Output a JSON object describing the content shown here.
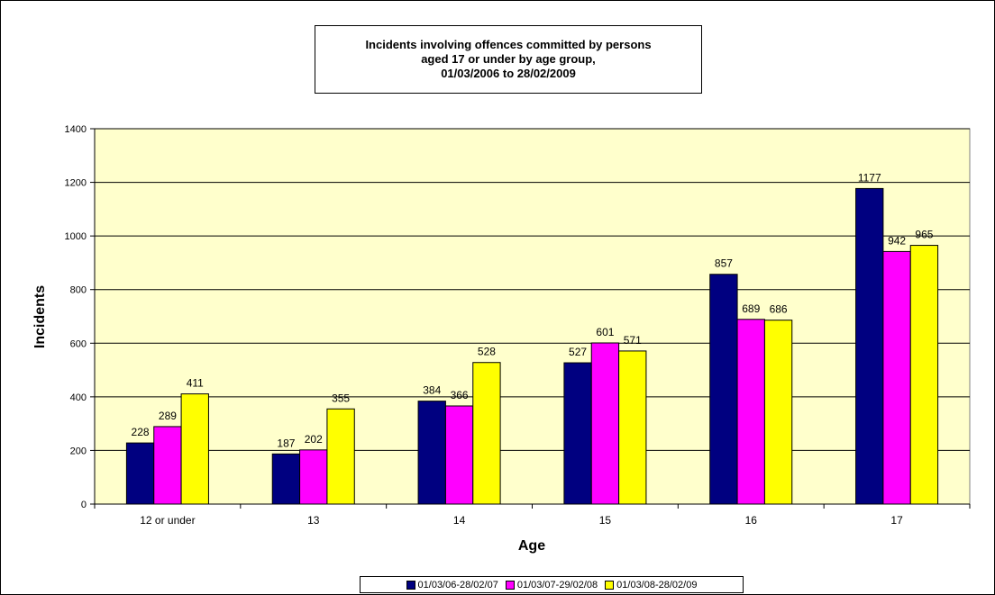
{
  "chart_data": {
    "type": "bar",
    "title_lines": [
      "Incidents involving offences committed by persons",
      "aged 17 or under by age group,",
      "01/03/2006 to 28/02/2009"
    ],
    "xlabel": "Age",
    "ylabel": "Incidents",
    "ylim": [
      0,
      1400
    ],
    "yticks": [
      "0",
      "200",
      "400",
      "600",
      "800",
      "1000",
      "1200",
      "1400"
    ],
    "grid": true,
    "legend_position": "bottom",
    "plot_background": "#FFFFCC",
    "categories": [
      "12 or under",
      "13",
      "14",
      "15",
      "16",
      "17"
    ],
    "series": [
      {
        "name": "01/03/06-28/02/07",
        "color": "#000080",
        "values": [
          228,
          187,
          384,
          527,
          857,
          1177
        ]
      },
      {
        "name": "01/03/07-29/02/08",
        "color": "#FF00FF",
        "values": [
          289,
          202,
          366,
          601,
          689,
          942
        ]
      },
      {
        "name": "01/03/08-28/02/09",
        "color": "#FFFF00",
        "values": [
          411,
          355,
          528,
          571,
          686,
          965
        ]
      }
    ]
  }
}
